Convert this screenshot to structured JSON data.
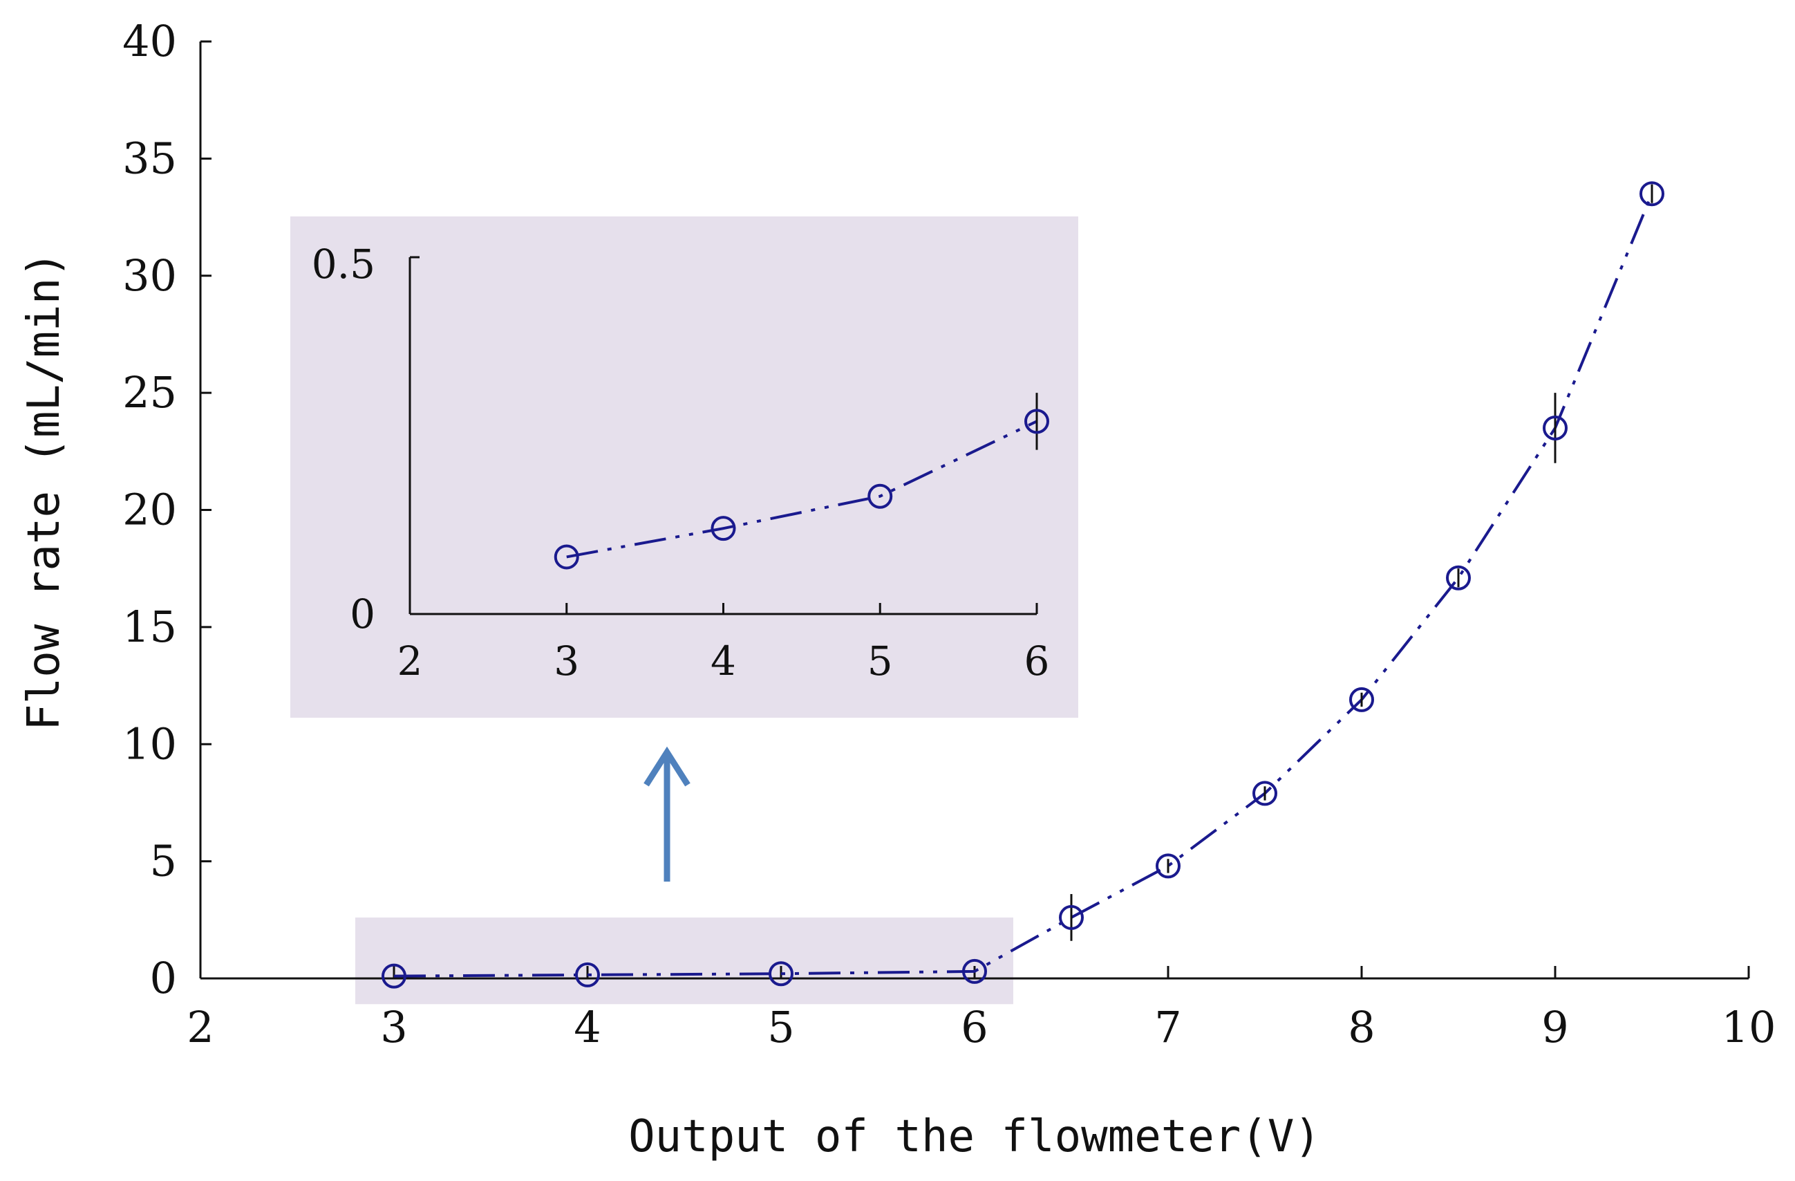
{
  "chart_data": [
    {
      "id": "main",
      "type": "scatter",
      "xlabel": "Output of the flowmeter(V)",
      "ylabel": "Flow rate (mL/min)",
      "xlim": [
        2,
        10
      ],
      "ylim": [
        0,
        40
      ],
      "xticks": [
        2,
        3,
        4,
        5,
        6,
        7,
        8,
        9,
        10
      ],
      "yticks": [
        0,
        5,
        10,
        15,
        20,
        25,
        30,
        35,
        40
      ],
      "grid": false,
      "line_style": "dash-dot-dot",
      "series": [
        {
          "x": [
            3,
            4,
            5,
            6,
            6.5,
            7,
            7.5,
            8,
            8.5,
            9,
            9.5
          ],
          "y": [
            0.1,
            0.15,
            0.2,
            0.3,
            2.6,
            4.8,
            7.9,
            11.9,
            17.1,
            23.5,
            33.5
          ],
          "error": [
            0,
            0,
            0,
            0,
            1.0,
            0.3,
            0.3,
            0.3,
            0.4,
            1.5,
            0.4
          ]
        }
      ],
      "highlight_box": {
        "x_range": [
          2.8,
          6.2
        ],
        "y_range": [
          -1.1,
          2.6
        ]
      }
    },
    {
      "id": "inset",
      "type": "scatter",
      "xlim": [
        2,
        6
      ],
      "ylim": [
        0,
        0.5
      ],
      "xticks": [
        2,
        3,
        4,
        5,
        6
      ],
      "yticks": [
        0,
        0.5
      ],
      "grid": false,
      "line_style": "dash-dot-dot",
      "series": [
        {
          "x": [
            3,
            4,
            5,
            6
          ],
          "y": [
            0.08,
            0.12,
            0.165,
            0.27
          ],
          "error": [
            0,
            0,
            0,
            0.04
          ]
        }
      ]
    }
  ],
  "colors": {
    "series": "#1a1a8e",
    "highlight": "#e6e0ec",
    "arrow": "#4f81bd",
    "axis": "#111111"
  }
}
